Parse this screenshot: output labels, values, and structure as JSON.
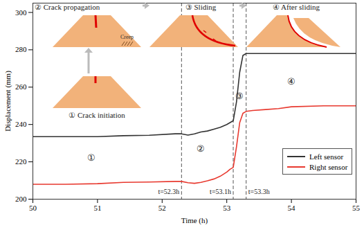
{
  "chart_data": {
    "type": "line",
    "x_label": "Time (h)",
    "y_label": "Displacement (mm)",
    "xlim": [
      50,
      55
    ],
    "ylim": [
      200,
      305
    ],
    "xticks": [
      50,
      51,
      52,
      53,
      54,
      55
    ],
    "yticks": [
      200,
      220,
      240,
      260,
      280,
      300
    ],
    "legend": "lower right",
    "x": [
      50,
      50.5,
      51,
      51.4,
      51.8,
      52.2,
      52.3,
      52.4,
      52.5,
      52.6,
      52.7,
      52.8,
      52.9,
      53.0,
      53.05,
      53.1,
      53.15,
      53.2,
      53.25,
      53.3,
      53.4,
      53.6,
      53.8,
      54,
      54.5,
      55
    ],
    "series": [
      {
        "name": "Left sensor",
        "color": "#333333",
        "values": [
          233.5,
          233.5,
          233.5,
          234,
          234.2,
          235,
          235,
          234.3,
          235,
          236,
          236.5,
          237.5,
          238.5,
          240,
          241,
          242,
          252,
          268,
          277,
          278,
          278,
          278,
          278,
          278,
          278,
          278
        ]
      },
      {
        "name": "Right sensor",
        "color": "#e8392f",
        "values": [
          208,
          208,
          208.3,
          209,
          209.2,
          209.5,
          209.5,
          208.8,
          208.5,
          209,
          209.8,
          210.8,
          212.3,
          214.5,
          216,
          217,
          228,
          241,
          246,
          247,
          247.5,
          248,
          248.5,
          249.5,
          250,
          250
        ]
      }
    ],
    "vlines": [
      {
        "x": 52.3,
        "label": "t=52.3h"
      },
      {
        "x": 53.1,
        "label": "t=53.1h"
      },
      {
        "x": 53.3,
        "label": "t=53.3h"
      }
    ],
    "annotations": [
      {
        "text": "①",
        "x": 50.9,
        "y": 222
      },
      {
        "text": "②",
        "x": 52.6,
        "y": 227
      },
      {
        "text": "③",
        "x": 53.2,
        "y": 255
      },
      {
        "text": "④",
        "x": 54,
        "y": 263
      }
    ],
    "stages": [
      "① Crack initiation",
      "② Crack propagation",
      "③ Sliding",
      "④ After sliding"
    ],
    "stage_note": "Creep"
  }
}
